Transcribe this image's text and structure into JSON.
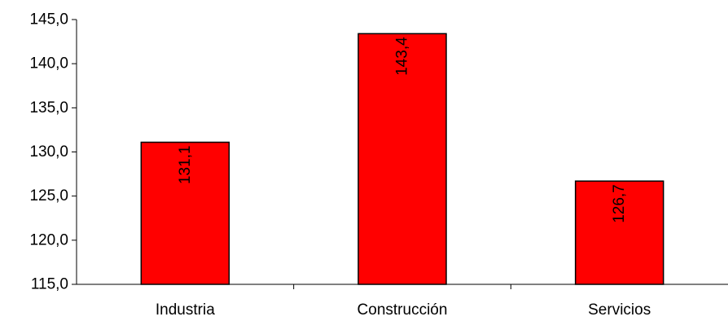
{
  "chart_data": {
    "type": "bar",
    "categories": [
      "Industria",
      "Construcción",
      "Servicios"
    ],
    "values": [
      131.1,
      143.4,
      126.7
    ],
    "value_labels": [
      "131,1",
      "143,4",
      "126,7"
    ],
    "ylim": [
      115.0,
      145.0
    ],
    "y_ticks": [
      115.0,
      120.0,
      125.0,
      130.0,
      135.0,
      140.0,
      145.0
    ],
    "y_tick_labels": [
      "115,0",
      "120,0",
      "125,0",
      "130,0",
      "135,0",
      "140,0",
      "145,0"
    ],
    "title": "",
    "xlabel": "",
    "ylabel": "",
    "grid": false,
    "legend": "none",
    "data_label_orientation": "vertical",
    "bar_color": "#ff0000",
    "bar_edge_color": "#000000",
    "axis_color": "#000000"
  }
}
